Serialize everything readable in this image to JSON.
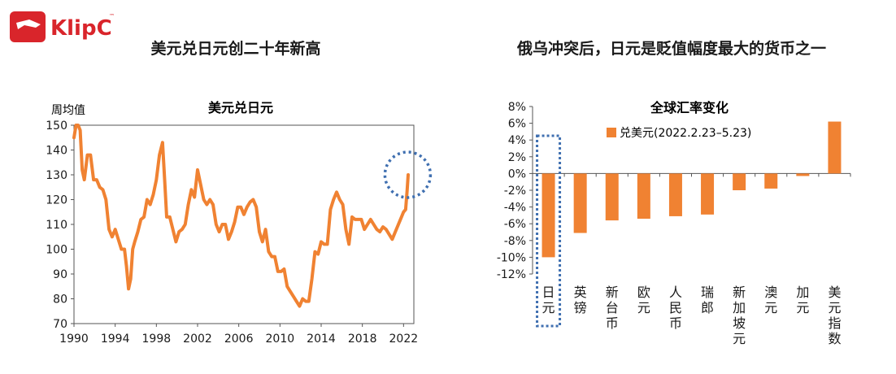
{
  "brand": {
    "name": "KlipC",
    "mark": "™",
    "color": "#d9252b"
  },
  "left_panel_title": "美元兑日元创二十年新高",
  "right_panel_title": "俄乌冲突后，日元是贬值幅度最大的货币之一",
  "chart_data": [
    {
      "type": "line",
      "title": "美元兑日元",
      "ylabel": "周均值",
      "color": "#f08232",
      "ylim": [
        70,
        150
      ],
      "yticks": [
        70,
        80,
        90,
        100,
        110,
        120,
        130,
        140,
        150
      ],
      "xlim": [
        1990,
        2023
      ],
      "xticks": [
        1990,
        1994,
        1998,
        2002,
        2006,
        2010,
        2014,
        2018,
        2022
      ],
      "highlight": {
        "x": 2022.4,
        "y": 130,
        "color": "#3f6fb0"
      },
      "series": [
        {
          "x": [
            1990.0,
            1990.2,
            1990.4,
            1990.6,
            1990.8,
            1991.0,
            1991.3,
            1991.6,
            1991.9,
            1992.2,
            1992.5,
            1992.8,
            1993.1,
            1993.4,
            1993.7,
            1994.0,
            1994.3,
            1994.6,
            1994.9,
            1995.1,
            1995.3,
            1995.5,
            1995.7,
            1995.9,
            1996.2,
            1996.5,
            1996.8,
            1997.1,
            1997.4,
            1997.7,
            1998.0,
            1998.3,
            1998.6,
            1998.8,
            1999.0,
            1999.3,
            1999.6,
            1999.9,
            2000.2,
            2000.5,
            2000.8,
            2001.1,
            2001.4,
            2001.7,
            2002.0,
            2002.3,
            2002.6,
            2002.9,
            2003.2,
            2003.5,
            2003.8,
            2004.1,
            2004.4,
            2004.7,
            2005.0,
            2005.3,
            2005.6,
            2005.9,
            2006.2,
            2006.5,
            2006.8,
            2007.1,
            2007.4,
            2007.7,
            2008.0,
            2008.3,
            2008.6,
            2008.9,
            2009.2,
            2009.5,
            2009.8,
            2010.1,
            2010.4,
            2010.7,
            2011.0,
            2011.3,
            2011.6,
            2011.9,
            2012.2,
            2012.5,
            2012.8,
            2013.1,
            2013.4,
            2013.7,
            2014.0,
            2014.3,
            2014.6,
            2014.9,
            2015.2,
            2015.5,
            2015.8,
            2016.1,
            2016.4,
            2016.7,
            2017.0,
            2017.3,
            2017.6,
            2017.9,
            2018.2,
            2018.5,
            2018.8,
            2019.1,
            2019.4,
            2019.7,
            2020.0,
            2020.3,
            2020.6,
            2020.9,
            2021.2,
            2021.5,
            2021.8,
            2022.0,
            2022.2,
            2022.35,
            2022.45
          ],
          "y": [
            145,
            150,
            152,
            148,
            132,
            128,
            138,
            138,
            128,
            128,
            125,
            124,
            120,
            108,
            105,
            108,
            104,
            100,
            100,
            93,
            84,
            88,
            100,
            103,
            107,
            112,
            113,
            120,
            118,
            122,
            128,
            138,
            143,
            128,
            113,
            113,
            108,
            103,
            107,
            108,
            110,
            118,
            124,
            121,
            132,
            126,
            120,
            118,
            120,
            118,
            110,
            107,
            110,
            110,
            104,
            107,
            111,
            117,
            117,
            114,
            117,
            119,
            120,
            117,
            107,
            103,
            108,
            99,
            97,
            97,
            91,
            91,
            92,
            85,
            83,
            81,
            79,
            77,
            80,
            79,
            79,
            88,
            99,
            98,
            103,
            102,
            102,
            116,
            120,
            123,
            120,
            118,
            108,
            102,
            113,
            112,
            112,
            112,
            108,
            110,
            112,
            110,
            108,
            107,
            109,
            108,
            106,
            104,
            107,
            110,
            113,
            115,
            116,
            124,
            130
          ]
        }
      ]
    },
    {
      "type": "bar",
      "title": "全球汇率变化",
      "color": "#f08232",
      "ylim": [
        -12,
        8
      ],
      "yticks": [
        "8%",
        "6%",
        "4%",
        "2%",
        "0%",
        "-2%",
        "-4%",
        "-6%",
        "-8%",
        "-10%",
        "-12%"
      ],
      "ytick_values": [
        8,
        6,
        4,
        2,
        0,
        -2,
        -4,
        -6,
        -8,
        -10,
        -12
      ],
      "categories": [
        "日元",
        "英镑",
        "新台币",
        "欧元",
        "人民币",
        "瑞郎",
        "新加坡元",
        "澳元",
        "加元",
        "美元指数"
      ],
      "values": [
        -10,
        -7.1,
        -5.6,
        -5.4,
        -5.1,
        -4.9,
        -2.0,
        -1.8,
        -0.3,
        6.2
      ],
      "series": [
        {
          "name": "兑美元(2022.2.23–5.23)",
          "values": [
            -10,
            -7.1,
            -5.6,
            -5.4,
            -5.1,
            -4.9,
            -2.0,
            -1.8,
            -0.3,
            6.2
          ]
        }
      ],
      "legend_position": "top-center",
      "highlight_category": "日元",
      "highlight_color": "#3f6fb0"
    }
  ]
}
